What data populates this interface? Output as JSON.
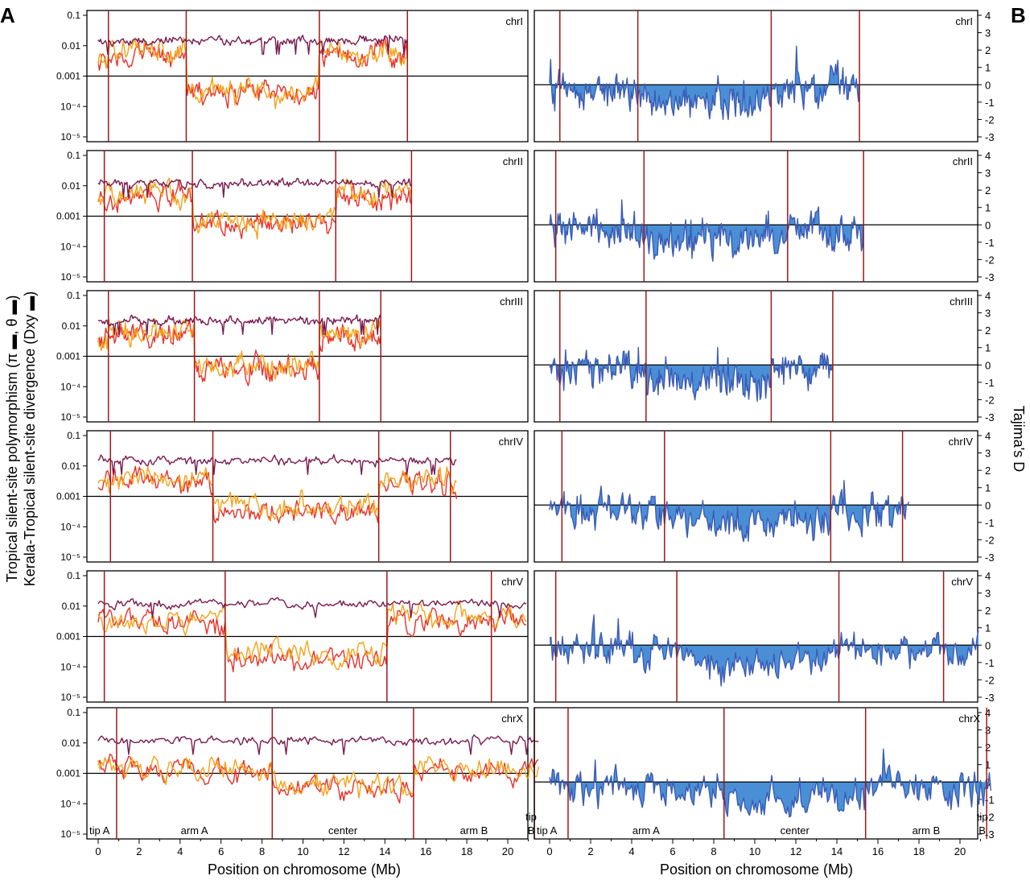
{
  "figure": {
    "panel_labels": {
      "left": "A",
      "right": "B"
    },
    "left_ylabel_line1": "Tropical silent-site polymorphism (π ▬, θ ▬)",
    "left_ylabel_line2": "Kerala-Tropical silent-site divergence (Dxy ▬)",
    "right_ylabel": "Tajima's D",
    "xlabel": "Position on chromosome (Mb)",
    "x_ticks": [
      "0",
      "2",
      "4",
      "6",
      "8",
      "10",
      "12",
      "14",
      "16",
      "18",
      "20"
    ],
    "left_y_ticks": [
      "0.1",
      "0.01",
      "0.001",
      "10⁻⁴",
      "10⁻⁵"
    ],
    "right_y_ticks": [
      "4",
      "3",
      "2",
      "1",
      "0",
      "-1",
      "-2",
      "-3"
    ],
    "colors": {
      "pi": "#f5a21b",
      "theta": "#e8312a",
      "dxy": "#7a1a4f",
      "boundary": "#a01818",
      "tajima_line": "#3b5bb5",
      "tajima_fill": "#4a8fd6"
    },
    "domain_labels": {
      "tipA": "tip A",
      "armA": "arm A",
      "center": "center",
      "armB": "arm B",
      "tipB_1": "tip",
      "tipB_2": "B"
    }
  },
  "chart_data": [
    {
      "type": "line",
      "panel": "A",
      "chromosome": "chrI",
      "xlabel": "Position on chromosome (Mb)",
      "yscale": "log",
      "ylim": [
        1e-05,
        0.1
      ],
      "length_mb": 15.1,
      "domain_boundaries_mb": [
        0.5,
        4.3,
        10.8,
        15.1
      ],
      "reference_line": 0.001,
      "series": [
        {
          "name": "π",
          "approx_level": {
            "tips": 0.003,
            "arms": 0.006,
            "center": 0.0003
          }
        },
        {
          "name": "θ",
          "approx_level": {
            "tips": 0.003,
            "arms": 0.005,
            "center": 0.00025
          }
        },
        {
          "name": "Dxy",
          "approx_level": 0.015
        }
      ]
    },
    {
      "type": "area",
      "panel": "B",
      "chromosome": "chrI",
      "ylabel": "Tajima's D",
      "ylim": [
        -3,
        4
      ],
      "length_mb": 15.1,
      "domain_boundaries_mb": [
        0.5,
        4.3,
        10.8,
        15.1
      ],
      "reference_line": 0,
      "approx_range": [
        -2.6,
        2.4
      ]
    },
    {
      "type": "line",
      "panel": "A",
      "chromosome": "chrII",
      "xlabel": "Position on chromosome (Mb)",
      "yscale": "log",
      "ylim": [
        1e-05,
        0.1
      ],
      "length_mb": 15.3,
      "domain_boundaries_mb": [
        0.3,
        4.6,
        11.6,
        15.3
      ],
      "reference_line": 0.001,
      "series": [
        {
          "name": "π",
          "approx_level": {
            "tips": 0.004,
            "arms": 0.005,
            "center": 0.0006
          }
        },
        {
          "name": "θ",
          "approx_level": {
            "tips": 0.003,
            "arms": 0.004,
            "center": 0.0005
          }
        },
        {
          "name": "Dxy",
          "approx_level": 0.012
        }
      ]
    },
    {
      "type": "area",
      "panel": "B",
      "chromosome": "chrII",
      "ylabel": "Tajima's D",
      "ylim": [
        -3,
        4
      ],
      "length_mb": 15.3,
      "domain_boundaries_mb": [
        0.3,
        4.6,
        11.6,
        15.3
      ],
      "reference_line": 0,
      "approx_range": [
        -2.5,
        2.8
      ]
    },
    {
      "type": "line",
      "panel": "A",
      "chromosome": "chrIII",
      "xlabel": "Position on chromosome (Mb)",
      "yscale": "log",
      "ylim": [
        1e-05,
        0.1
      ],
      "length_mb": 13.8,
      "domain_boundaries_mb": [
        0.5,
        4.7,
        10.8,
        13.8
      ],
      "reference_line": 0.001,
      "series": [
        {
          "name": "π",
          "approx_level": {
            "tips": 0.003,
            "arms": 0.006,
            "center": 0.0005
          }
        },
        {
          "name": "θ",
          "approx_level": {
            "tips": 0.003,
            "arms": 0.005,
            "center": 0.0004
          }
        },
        {
          "name": "Dxy",
          "approx_level": 0.015
        }
      ]
    },
    {
      "type": "area",
      "panel": "B",
      "chromosome": "chrIII",
      "ylabel": "Tajima's D",
      "ylim": [
        -3,
        4
      ],
      "length_mb": 13.8,
      "domain_boundaries_mb": [
        0.5,
        4.7,
        10.8,
        13.8
      ],
      "reference_line": 0,
      "approx_range": [
        -2.6,
        2.2
      ]
    },
    {
      "type": "line",
      "panel": "A",
      "chromosome": "chrIV",
      "xlabel": "Position on chromosome (Mb)",
      "yscale": "log",
      "ylim": [
        1e-05,
        0.1
      ],
      "length_mb": 17.5,
      "domain_boundaries_mb": [
        0.6,
        5.6,
        13.7,
        17.2
      ],
      "reference_line": 0.001,
      "series": [
        {
          "name": "π",
          "approx_level": {
            "tips": 0.002,
            "arms": 0.004,
            "center": 0.0005
          }
        },
        {
          "name": "θ",
          "approx_level": {
            "tips": 0.002,
            "arms": 0.003,
            "center": 0.0004
          }
        },
        {
          "name": "Dxy",
          "approx_level": 0.015
        }
      ]
    },
    {
      "type": "area",
      "panel": "B",
      "chromosome": "chrIV",
      "ylabel": "Tajima's D",
      "ylim": [
        -3,
        4
      ],
      "length_mb": 17.5,
      "domain_boundaries_mb": [
        0.6,
        5.6,
        13.7,
        17.2
      ],
      "reference_line": 0,
      "approx_range": [
        -2.5,
        2.6
      ]
    },
    {
      "type": "line",
      "panel": "A",
      "chromosome": "chrV",
      "xlabel": "Position on chromosome (Mb)",
      "yscale": "log",
      "ylim": [
        1e-05,
        0.1
      ],
      "length_mb": 20.9,
      "domain_boundaries_mb": [
        0.3,
        6.2,
        14.1,
        19.2
      ],
      "reference_line": 0.001,
      "series": [
        {
          "name": "π",
          "approx_level": {
            "tips": 0.004,
            "arms": 0.004,
            "center": 0.0003
          }
        },
        {
          "name": "θ",
          "approx_level": {
            "tips": 0.003,
            "arms": 0.003,
            "center": 0.0002
          }
        },
        {
          "name": "Dxy",
          "approx_level": 0.012
        }
      ]
    },
    {
      "type": "area",
      "panel": "B",
      "chromosome": "chrV",
      "ylabel": "Tajima's D",
      "ylim": [
        -3,
        4
      ],
      "length_mb": 20.9,
      "domain_boundaries_mb": [
        0.3,
        6.2,
        14.1,
        19.2
      ],
      "reference_line": 0,
      "approx_range": [
        -2.6,
        2.3
      ]
    },
    {
      "type": "line",
      "panel": "A",
      "chromosome": "chrX",
      "xlabel": "Position on chromosome (Mb)",
      "yscale": "log",
      "ylim": [
        1e-05,
        0.1
      ],
      "length_mb": 21.5,
      "domain_boundaries_mb": [
        0.9,
        8.5,
        15.4,
        21.3
      ],
      "reference_line": 0.001,
      "series": [
        {
          "name": "π",
          "approx_level": {
            "tips": 0.002,
            "arms": 0.0015,
            "center": 0.0004
          }
        },
        {
          "name": "θ",
          "approx_level": {
            "tips": 0.002,
            "arms": 0.0012,
            "center": 0.0003
          }
        },
        {
          "name": "Dxy",
          "approx_level": 0.012
        }
      ]
    },
    {
      "type": "area",
      "panel": "B",
      "chromosome": "chrX",
      "ylabel": "Tajima's D",
      "ylim": [
        -3,
        4
      ],
      "length_mb": 21.5,
      "domain_boundaries_mb": [
        0.9,
        8.5,
        15.4,
        21.3
      ],
      "reference_line": 0,
      "approx_range": [
        -2.5,
        2.3
      ]
    }
  ]
}
